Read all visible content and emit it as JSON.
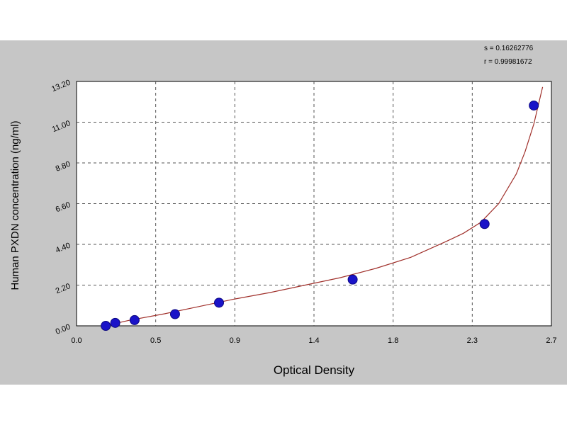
{
  "stats": {
    "s_line": "s = 0.16262776",
    "r_line": "r = 0.99981672"
  },
  "chart_data": {
    "type": "scatter",
    "title": "",
    "xlabel": "Optical Density",
    "ylabel": "Human PXDN  concentration (ng/ml)",
    "xlim": [
      0.0,
      2.7
    ],
    "ylim": [
      0.0,
      13.2
    ],
    "x_ticks": [
      "0.0",
      "0.5",
      "0.9",
      "1.4",
      "1.8",
      "2.3",
      "2.7"
    ],
    "y_ticks": [
      "0.00",
      "2.20",
      "4.40",
      "6.60",
      "8.80",
      "11.00",
      "13.20"
    ],
    "grid": true,
    "series": [
      {
        "type": "scatter",
        "x": [
          0.166,
          0.22,
          0.33,
          0.56,
          0.81,
          1.57,
          2.32,
          2.6
        ],
        "y": [
          0.0,
          0.16,
          0.31,
          0.63,
          1.25,
          2.5,
          5.5,
          11.9
        ],
        "color": "#1a13c8"
      },
      {
        "type": "line",
        "x": [
          0.16,
          0.3,
          0.5,
          0.7,
          0.9,
          1.1,
          1.3,
          1.5,
          1.7,
          1.9,
          2.1,
          2.2,
          2.3,
          2.4,
          2.5,
          2.55,
          2.6,
          2.65
        ],
        "y": [
          0.0,
          0.3,
          0.65,
          1.05,
          1.45,
          1.8,
          2.2,
          2.6,
          3.1,
          3.7,
          4.55,
          5.0,
          5.6,
          6.6,
          8.2,
          9.4,
          10.9,
          12.9
        ],
        "color": "#a0302b"
      }
    ]
  }
}
